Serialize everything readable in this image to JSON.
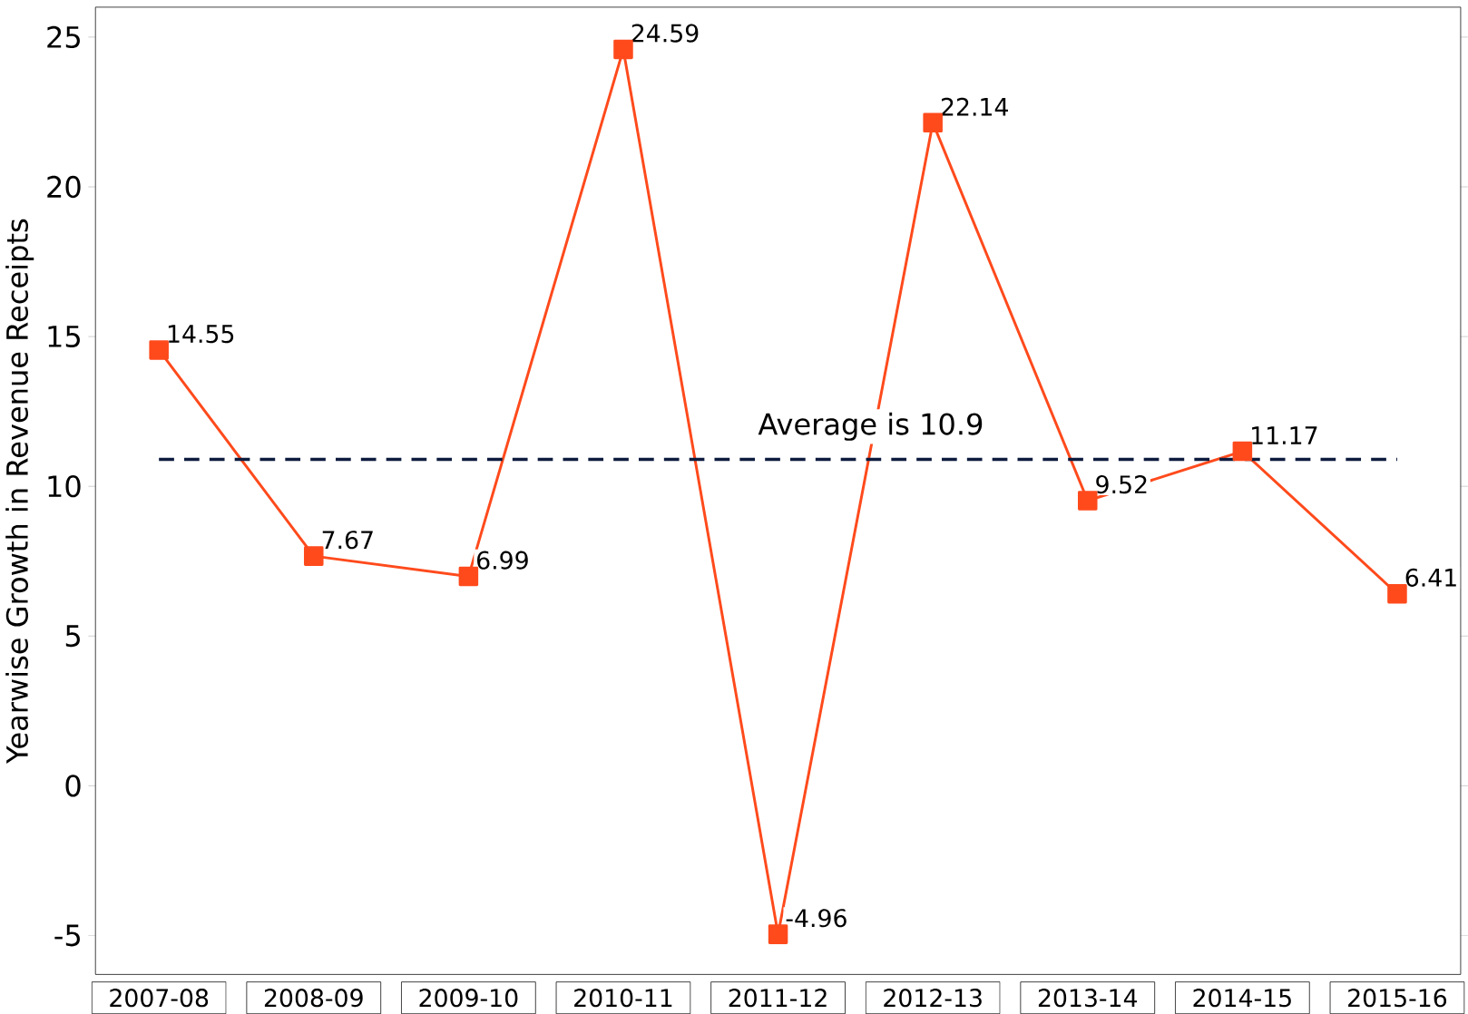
{
  "chart_data": {
    "type": "line",
    "ylabel": "Yearwise Growth in Revenue Receipts",
    "categories": [
      "2007-08",
      "2008-09",
      "2009-10",
      "2010-11",
      "2011-12",
      "2012-13",
      "2013-14",
      "2014-15",
      "2015-16"
    ],
    "series": [
      {
        "color": "#ff4a1c",
        "values": [
          14.55,
          7.67,
          6.99,
          24.59,
          -4.96,
          22.14,
          9.52,
          11.17,
          6.41
        ]
      }
    ],
    "data_labels": true,
    "marker": "square",
    "line_style": "solid",
    "ylim": [
      -6.3,
      26
    ],
    "yticks": [
      -5,
      0,
      5,
      10,
      15,
      20,
      25
    ],
    "ref_lines": [
      {
        "axis": "y",
        "value": 10.9,
        "label": "Average is 10.9",
        "color": "#0d1b3e",
        "line_style": "dashed"
      }
    ]
  }
}
